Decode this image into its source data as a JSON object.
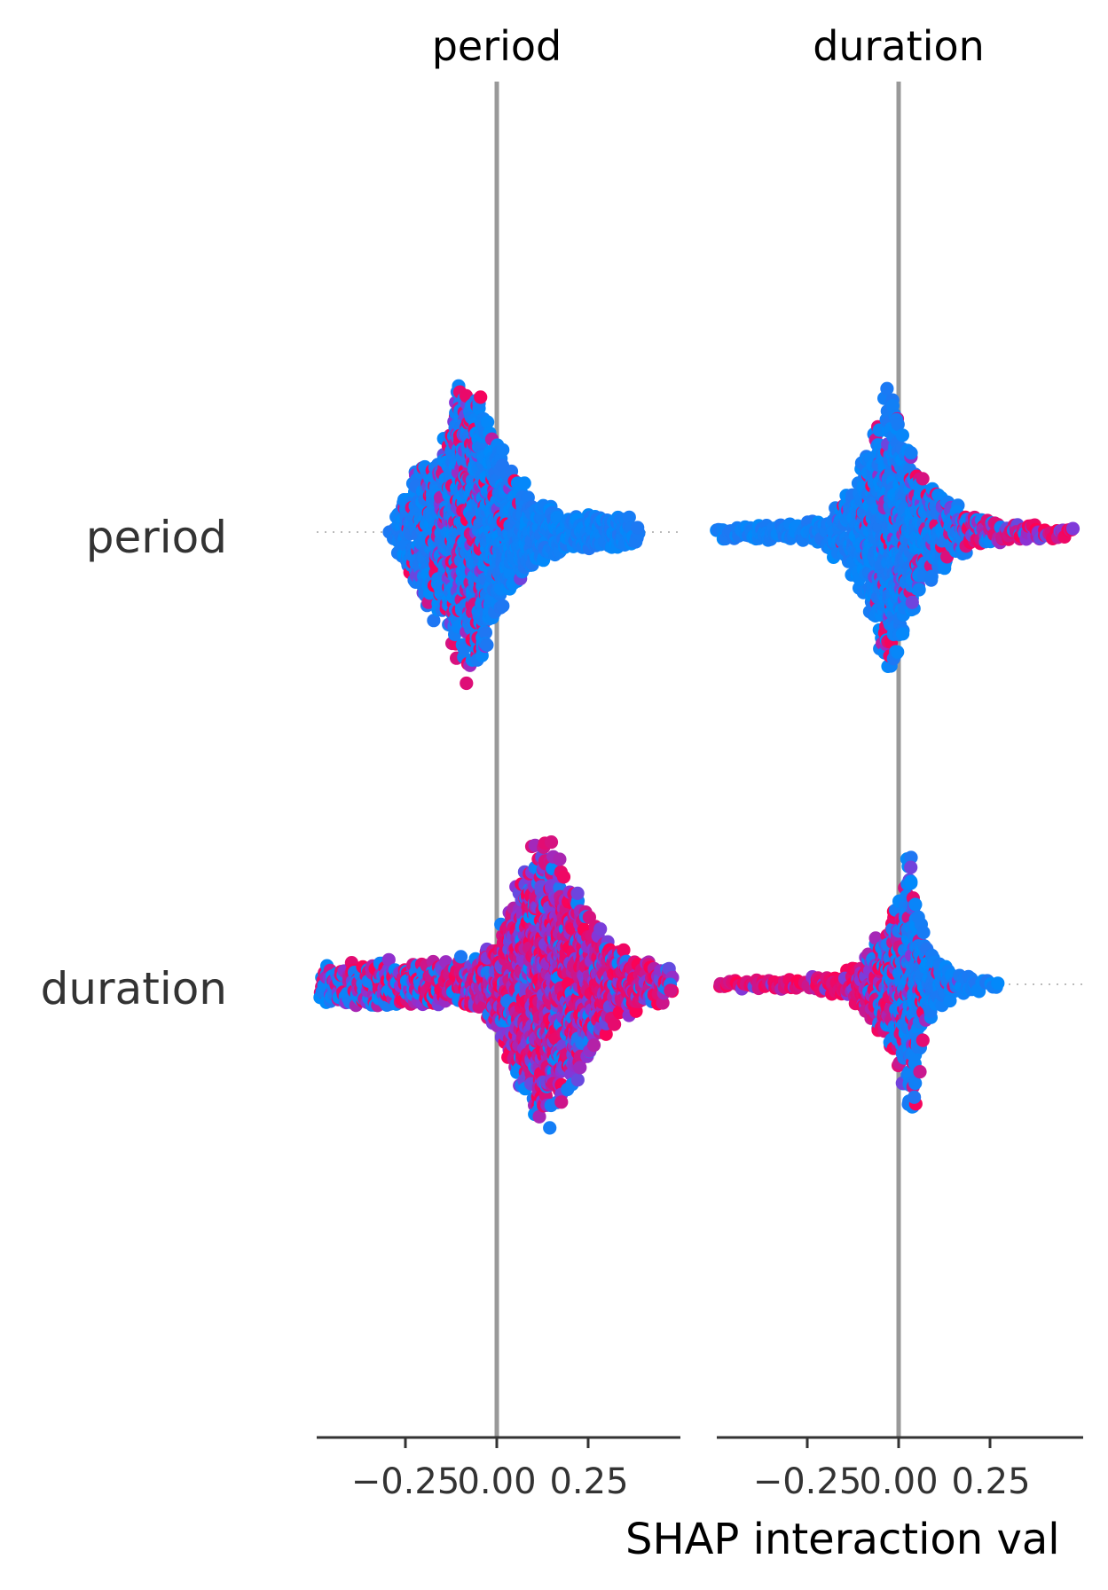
{
  "chart_data": {
    "type": "scatter",
    "subtype": "beeswarm-matrix",
    "columns": [
      "period",
      "duration"
    ],
    "rows": [
      "period",
      "duration"
    ],
    "xlabel": "SHAP interaction val",
    "xticks": [
      -0.25,
      0.0,
      0.25
    ],
    "xtick_labels": [
      "−0.25",
      "0.00",
      "0.25"
    ],
    "xlim": [
      -0.5,
      0.5
    ],
    "colors": {
      "high": "#ff0052",
      "mid": "#8a33d6",
      "low": "#008bfb",
      "zero_line": "#999999",
      "axis": "#333333",
      "text": "#333333"
    },
    "panels": [
      {
        "row": "period",
        "col": "period",
        "segments": [
          [
            -0.29,
            0.0,
            0.03
          ],
          [
            -0.25,
            0.3,
            0.05
          ],
          [
            -0.2,
            0.48,
            0.1
          ],
          [
            -0.15,
            0.6,
            0.14
          ],
          [
            -0.1,
            0.95,
            0.2
          ],
          [
            -0.05,
            1.0,
            0.16
          ],
          [
            0.0,
            0.62,
            0.05
          ],
          [
            0.05,
            0.38,
            0.02
          ],
          [
            0.1,
            0.24,
            0.0
          ],
          [
            0.15,
            0.2,
            0.0
          ],
          [
            0.2,
            0.1,
            0.0
          ],
          [
            0.25,
            0.14,
            0.0
          ],
          [
            0.3,
            0.12,
            0.0
          ],
          [
            0.35,
            0.12,
            0.0
          ],
          [
            0.39,
            0.06,
            0.0
          ]
        ]
      },
      {
        "row": "period",
        "col": "duration",
        "segments": [
          [
            -0.5,
            0.04,
            0.0
          ],
          [
            -0.4,
            0.05,
            0.0
          ],
          [
            -0.3,
            0.06,
            0.0
          ],
          [
            -0.2,
            0.1,
            0.02
          ],
          [
            -0.12,
            0.3,
            0.04
          ],
          [
            -0.06,
            0.72,
            0.06
          ],
          [
            -0.02,
            1.0,
            0.06
          ],
          [
            0.02,
            0.62,
            0.08
          ],
          [
            0.07,
            0.36,
            0.1
          ],
          [
            0.12,
            0.26,
            0.14
          ],
          [
            0.18,
            0.16,
            0.22
          ],
          [
            0.24,
            0.1,
            0.3
          ],
          [
            0.3,
            0.06,
            0.4
          ],
          [
            0.38,
            0.05,
            0.55
          ],
          [
            0.48,
            0.04,
            0.7
          ]
        ]
      },
      {
        "row": "duration",
        "col": "period",
        "segments": [
          [
            -0.48,
            0.12,
            0.3
          ],
          [
            -0.4,
            0.14,
            0.32
          ],
          [
            -0.33,
            0.16,
            0.34
          ],
          [
            -0.26,
            0.16,
            0.36
          ],
          [
            -0.2,
            0.14,
            0.38
          ],
          [
            -0.14,
            0.16,
            0.4
          ],
          [
            -0.07,
            0.18,
            0.42
          ],
          [
            -0.02,
            0.24,
            0.45
          ],
          [
            0.03,
            0.48,
            0.5
          ],
          [
            0.08,
            0.8,
            0.5
          ],
          [
            0.13,
            1.0,
            0.48
          ],
          [
            0.18,
            0.8,
            0.46
          ],
          [
            0.23,
            0.62,
            0.46
          ],
          [
            0.28,
            0.4,
            0.48
          ],
          [
            0.33,
            0.24,
            0.5
          ],
          [
            0.38,
            0.18,
            0.5
          ],
          [
            0.43,
            0.14,
            0.5
          ],
          [
            0.48,
            0.12,
            0.48
          ]
        ]
      },
      {
        "row": "duration",
        "col": "duration",
        "segments": [
          [
            -0.49,
            0.02,
            1.0
          ],
          [
            -0.42,
            0.03,
            0.95
          ],
          [
            -0.35,
            0.03,
            0.92
          ],
          [
            -0.28,
            0.04,
            0.9
          ],
          [
            -0.22,
            0.05,
            0.85
          ],
          [
            -0.16,
            0.07,
            0.78
          ],
          [
            -0.1,
            0.16,
            0.6
          ],
          [
            -0.05,
            0.34,
            0.4
          ],
          [
            0.0,
            0.55,
            0.25
          ],
          [
            0.03,
            1.0,
            0.14
          ],
          [
            0.07,
            0.34,
            0.08
          ],
          [
            0.12,
            0.14,
            0.04
          ],
          [
            0.17,
            0.08,
            0.02
          ],
          [
            0.22,
            0.05,
            0.0
          ],
          [
            0.27,
            0.03,
            0.0
          ]
        ]
      }
    ]
  }
}
